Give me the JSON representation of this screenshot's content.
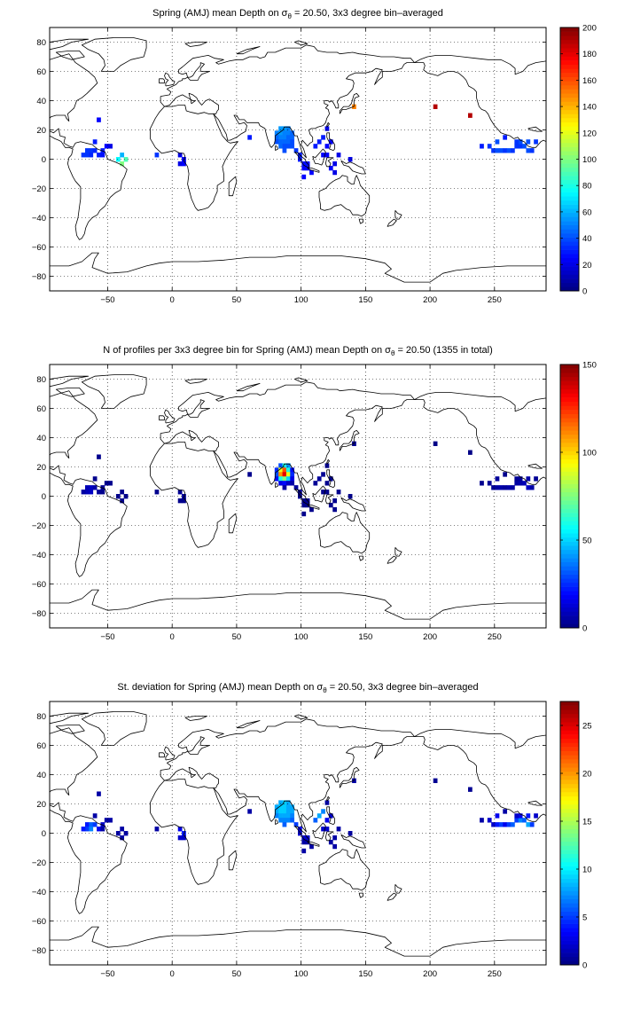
{
  "chart_data": [
    {
      "type": "heatmap",
      "title_parts": [
        "Spring (AMJ) mean Depth on σ",
        "θ",
        " = 20.50, 3x3 degree bin–averaged"
      ],
      "xlabel": "",
      "ylabel": "",
      "xlim": [
        -95,
        290
      ],
      "ylim": [
        -90,
        90
      ],
      "xticks": [
        -50,
        0,
        50,
        100,
        150,
        200,
        250
      ],
      "yticks": [
        -80,
        -60,
        -40,
        -20,
        0,
        20,
        40,
        60,
        80
      ],
      "grid": true,
      "colormap": "jet",
      "clim": [
        0,
        200
      ],
      "cticks": [
        0,
        20,
        40,
        60,
        80,
        100,
        120,
        140,
        160,
        180,
        200
      ],
      "bins": [
        [
          -66,
          6,
          35
        ],
        [
          -63,
          6,
          35
        ],
        [
          -60,
          6,
          32
        ],
        [
          -66,
          3,
          35
        ],
        [
          -63,
          3,
          32
        ],
        [
          -69,
          3,
          35
        ],
        [
          -57,
          3,
          30
        ],
        [
          -54,
          6,
          30
        ],
        [
          -54,
          3,
          28
        ],
        [
          -51,
          9,
          25
        ],
        [
          -60,
          12,
          30
        ],
        [
          -48,
          9,
          20
        ],
        [
          -57,
          27,
          25
        ],
        [
          -42,
          0,
          75
        ],
        [
          -39,
          -3,
          100
        ],
        [
          -36,
          0,
          90
        ],
        [
          -39,
          3,
          60
        ],
        [
          -12,
          3,
          35
        ],
        [
          6,
          3,
          20
        ],
        [
          9,
          0,
          25
        ],
        [
          6,
          -3,
          20
        ],
        [
          9,
          -3,
          25
        ],
        [
          60,
          15,
          30
        ],
        [
          84,
          21,
          55
        ],
        [
          87,
          21,
          55
        ],
        [
          90,
          21,
          50
        ],
        [
          81,
          18,
          50
        ],
        [
          84,
          18,
          55
        ],
        [
          87,
          18,
          50
        ],
        [
          90,
          18,
          50
        ],
        [
          93,
          18,
          45
        ],
        [
          81,
          15,
          45
        ],
        [
          84,
          15,
          50
        ],
        [
          87,
          15,
          50
        ],
        [
          90,
          15,
          45
        ],
        [
          93,
          15,
          45
        ],
        [
          81,
          12,
          40
        ],
        [
          84,
          12,
          45
        ],
        [
          87,
          12,
          45
        ],
        [
          90,
          12,
          45
        ],
        [
          93,
          12,
          40
        ],
        [
          84,
          9,
          45
        ],
        [
          87,
          9,
          40
        ],
        [
          90,
          9,
          40
        ],
        [
          87,
          6,
          40
        ],
        [
          93,
          9,
          40
        ],
        [
          96,
          6,
          35
        ],
        [
          99,
          3,
          30
        ],
        [
          99,
          0,
          30
        ],
        [
          102,
          -3,
          28
        ],
        [
          105,
          -3,
          28
        ],
        [
          102,
          -6,
          25
        ],
        [
          105,
          -6,
          25
        ],
        [
          108,
          -9,
          25
        ],
        [
          102,
          -12,
          25
        ],
        [
          111,
          9,
          30
        ],
        [
          114,
          12,
          30
        ],
        [
          117,
          15,
          30
        ],
        [
          120,
          9,
          25
        ],
        [
          123,
          12,
          25
        ],
        [
          120,
          3,
          25
        ],
        [
          117,
          3,
          25
        ],
        [
          123,
          -6,
          25
        ],
        [
          126,
          -3,
          20
        ],
        [
          129,
          3,
          20
        ],
        [
          126,
          -9,
          20
        ],
        [
          138,
          0,
          20
        ],
        [
          120,
          21,
          20
        ],
        [
          141,
          36,
          150
        ],
        [
          204,
          36,
          190
        ],
        [
          231,
          30,
          190
        ],
        [
          240,
          9,
          30
        ],
        [
          246,
          9,
          35
        ],
        [
          252,
          12,
          40
        ],
        [
          249,
          6,
          35
        ],
        [
          252,
          6,
          40
        ],
        [
          255,
          6,
          40
        ],
        [
          258,
          6,
          35
        ],
        [
          261,
          6,
          40
        ],
        [
          264,
          6,
          35
        ],
        [
          267,
          9,
          35
        ],
        [
          270,
          9,
          35
        ],
        [
          273,
          9,
          40
        ],
        [
          276,
          6,
          40
        ],
        [
          279,
          6,
          35
        ],
        [
          276,
          12,
          40
        ],
        [
          270,
          12,
          40
        ],
        [
          267,
          12,
          35
        ],
        [
          258,
          15,
          30
        ],
        [
          282,
          12,
          35
        ]
      ]
    },
    {
      "type": "heatmap",
      "title_parts": [
        "N of profiles per 3x3 degree bin for Spring (AMJ) mean Depth on σ",
        "θ",
        " = 20.50 (1355 in total)"
      ],
      "xlabel": "",
      "ylabel": "",
      "xlim": [
        -95,
        290
      ],
      "ylim": [
        -90,
        90
      ],
      "xticks": [
        -50,
        0,
        50,
        100,
        150,
        200,
        250
      ],
      "yticks": [
        -80,
        -60,
        -40,
        -20,
        0,
        20,
        40,
        60,
        80
      ],
      "grid": true,
      "colormap": "jet",
      "clim": [
        0,
        150
      ],
      "cticks": [
        0,
        50,
        100,
        150
      ],
      "bins": [
        [
          -66,
          6,
          8
        ],
        [
          -63,
          6,
          10
        ],
        [
          -60,
          6,
          6
        ],
        [
          -66,
          3,
          8
        ],
        [
          -63,
          3,
          10
        ],
        [
          -69,
          3,
          5
        ],
        [
          -57,
          3,
          4
        ],
        [
          -54,
          6,
          3
        ],
        [
          -54,
          3,
          2
        ],
        [
          -51,
          9,
          2
        ],
        [
          -60,
          12,
          2
        ],
        [
          -48,
          9,
          2
        ],
        [
          -57,
          27,
          2
        ],
        [
          -42,
          0,
          2
        ],
        [
          -39,
          -3,
          2
        ],
        [
          -36,
          0,
          2
        ],
        [
          -39,
          3,
          2
        ],
        [
          -12,
          3,
          2
        ],
        [
          6,
          3,
          3
        ],
        [
          9,
          0,
          4
        ],
        [
          6,
          -3,
          2
        ],
        [
          9,
          -3,
          2
        ],
        [
          60,
          15,
          2
        ],
        [
          84,
          21,
          30
        ],
        [
          87,
          21,
          60
        ],
        [
          90,
          21,
          40
        ],
        [
          81,
          18,
          25
        ],
        [
          84,
          18,
          90
        ],
        [
          87,
          18,
          120
        ],
        [
          90,
          18,
          60
        ],
        [
          93,
          18,
          20
        ],
        [
          81,
          15,
          30
        ],
        [
          84,
          15,
          110
        ],
        [
          87,
          15,
          135
        ],
        [
          90,
          15,
          90
        ],
        [
          93,
          15,
          25
        ],
        [
          81,
          12,
          20
        ],
        [
          84,
          12,
          60
        ],
        [
          87,
          12,
          75
        ],
        [
          90,
          12,
          50
        ],
        [
          93,
          12,
          15
        ],
        [
          84,
          9,
          15
        ],
        [
          87,
          9,
          20
        ],
        [
          90,
          9,
          10
        ],
        [
          87,
          6,
          5
        ],
        [
          93,
          9,
          6
        ],
        [
          96,
          6,
          4
        ],
        [
          99,
          3,
          3
        ],
        [
          99,
          0,
          3
        ],
        [
          102,
          -3,
          2
        ],
        [
          105,
          -3,
          2
        ],
        [
          102,
          -6,
          2
        ],
        [
          105,
          -6,
          2
        ],
        [
          108,
          -9,
          2
        ],
        [
          102,
          -12,
          2
        ],
        [
          111,
          9,
          3
        ],
        [
          114,
          12,
          4
        ],
        [
          117,
          15,
          3
        ],
        [
          120,
          9,
          2
        ],
        [
          123,
          12,
          2
        ],
        [
          120,
          3,
          2
        ],
        [
          117,
          3,
          2
        ],
        [
          123,
          -6,
          2
        ],
        [
          126,
          -3,
          2
        ],
        [
          129,
          3,
          2
        ],
        [
          126,
          -9,
          2
        ],
        [
          138,
          0,
          2
        ],
        [
          120,
          21,
          2
        ],
        [
          141,
          36,
          2
        ],
        [
          204,
          36,
          1
        ],
        [
          231,
          30,
          1
        ],
        [
          240,
          9,
          2
        ],
        [
          246,
          9,
          3
        ],
        [
          252,
          12,
          4
        ],
        [
          249,
          6,
          3
        ],
        [
          252,
          6,
          5
        ],
        [
          255,
          6,
          6
        ],
        [
          258,
          6,
          4
        ],
        [
          261,
          6,
          6
        ],
        [
          264,
          6,
          5
        ],
        [
          267,
          9,
          5
        ],
        [
          270,
          9,
          6
        ],
        [
          273,
          9,
          8
        ],
        [
          276,
          6,
          10
        ],
        [
          279,
          6,
          6
        ],
        [
          276,
          12,
          6
        ],
        [
          270,
          12,
          4
        ],
        [
          267,
          12,
          3
        ],
        [
          258,
          15,
          2
        ],
        [
          282,
          12,
          3
        ]
      ]
    },
    {
      "type": "heatmap",
      "title_parts": [
        "St. deviation for Spring (AMJ) mean Depth on σ",
        "θ",
        " = 20.50, 3x3 degree bin–averaged"
      ],
      "xlabel": "",
      "ylabel": "",
      "xlim": [
        -95,
        290
      ],
      "ylim": [
        -90,
        90
      ],
      "xticks": [
        -50,
        0,
        50,
        100,
        150,
        200,
        250
      ],
      "yticks": [
        -80,
        -60,
        -40,
        -20,
        0,
        20,
        40,
        60,
        80
      ],
      "grid": true,
      "colormap": "jet",
      "clim": [
        0,
        27.5
      ],
      "cticks": [
        0,
        5,
        10,
        15,
        20,
        25
      ],
      "bins": [
        [
          -66,
          6,
          4
        ],
        [
          -63,
          6,
          6
        ],
        [
          -60,
          6,
          5
        ],
        [
          -66,
          3,
          5
        ],
        [
          -63,
          3,
          7
        ],
        [
          -69,
          3,
          4
        ],
        [
          -57,
          3,
          3
        ],
        [
          -54,
          6,
          2
        ],
        [
          -54,
          3,
          1
        ],
        [
          -51,
          9,
          1
        ],
        [
          -60,
          12,
          1
        ],
        [
          -48,
          9,
          1
        ],
        [
          -57,
          27,
          1
        ],
        [
          -42,
          0,
          1
        ],
        [
          -39,
          -3,
          1
        ],
        [
          -36,
          0,
          1
        ],
        [
          -39,
          3,
          1
        ],
        [
          -12,
          3,
          1
        ],
        [
          6,
          3,
          3
        ],
        [
          9,
          0,
          4
        ],
        [
          6,
          -3,
          2
        ],
        [
          9,
          -3,
          2
        ],
        [
          60,
          15,
          1
        ],
        [
          84,
          21,
          8
        ],
        [
          87,
          21,
          9
        ],
        [
          90,
          21,
          8
        ],
        [
          81,
          18,
          8
        ],
        [
          84,
          18,
          9
        ],
        [
          87,
          18,
          9
        ],
        [
          90,
          18,
          8
        ],
        [
          93,
          18,
          8
        ],
        [
          81,
          15,
          8
        ],
        [
          84,
          15,
          9
        ],
        [
          87,
          15,
          9
        ],
        [
          90,
          15,
          8
        ],
        [
          93,
          15,
          8
        ],
        [
          81,
          12,
          7
        ],
        [
          84,
          12,
          8
        ],
        [
          87,
          12,
          8
        ],
        [
          90,
          12,
          8
        ],
        [
          93,
          12,
          7
        ],
        [
          84,
          9,
          7
        ],
        [
          87,
          9,
          7
        ],
        [
          90,
          9,
          7
        ],
        [
          87,
          6,
          6
        ],
        [
          93,
          9,
          6
        ],
        [
          96,
          6,
          5
        ],
        [
          99,
          3,
          3
        ],
        [
          99,
          0,
          2
        ],
        [
          102,
          -3,
          2
        ],
        [
          105,
          -3,
          2
        ],
        [
          102,
          -6,
          1
        ],
        [
          105,
          -6,
          1
        ],
        [
          108,
          -9,
          1
        ],
        [
          102,
          -12,
          1
        ],
        [
          111,
          9,
          6
        ],
        [
          114,
          12,
          8
        ],
        [
          117,
          15,
          7
        ],
        [
          120,
          9,
          3
        ],
        [
          123,
          12,
          2
        ],
        [
          120,
          3,
          2
        ],
        [
          117,
          3,
          2
        ],
        [
          123,
          -6,
          1
        ],
        [
          126,
          -3,
          1
        ],
        [
          129,
          3,
          1
        ],
        [
          126,
          -9,
          1
        ],
        [
          138,
          0,
          1
        ],
        [
          120,
          21,
          1
        ],
        [
          141,
          36,
          1
        ],
        [
          204,
          36,
          0.5
        ],
        [
          231,
          30,
          0.5
        ],
        [
          240,
          9,
          1
        ],
        [
          246,
          9,
          2
        ],
        [
          252,
          12,
          3
        ],
        [
          249,
          6,
          2
        ],
        [
          252,
          6,
          4
        ],
        [
          255,
          6,
          5
        ],
        [
          258,
          6,
          3
        ],
        [
          261,
          6,
          5
        ],
        [
          264,
          6,
          6
        ],
        [
          267,
          9,
          5
        ],
        [
          270,
          9,
          7
        ],
        [
          273,
          9,
          6
        ],
        [
          276,
          6,
          8
        ],
        [
          279,
          6,
          5
        ],
        [
          276,
          12,
          4
        ],
        [
          270,
          12,
          3
        ],
        [
          267,
          12,
          2
        ],
        [
          258,
          15,
          1
        ],
        [
          282,
          12,
          2
        ]
      ]
    }
  ]
}
